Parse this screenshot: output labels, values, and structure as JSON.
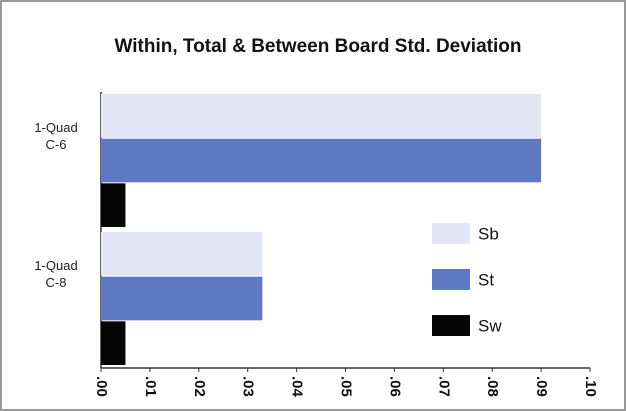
{
  "chart_data": {
    "type": "hbar",
    "title": "Within, Total & Between Board Std. Deviation",
    "categories": [
      "1-Quad C-6",
      "1-Quad C-8"
    ],
    "series": [
      {
        "name": "Sb",
        "color": "#e4e6f6",
        "values": [
          0.09,
          0.033
        ]
      },
      {
        "name": "St",
        "color": "#5f79c3",
        "values": [
          0.09,
          0.033
        ]
      },
      {
        "name": "Sw",
        "color": "#050505",
        "values": [
          0.005,
          0.005
        ]
      }
    ],
    "xlim": [
      0,
      0.1
    ],
    "xticks": [
      {
        "value": 0,
        "label": ".00"
      },
      {
        "value": 0.01,
        "label": ".01"
      },
      {
        "value": 0.02,
        "label": ".02"
      },
      {
        "value": 0.03,
        "label": ".03"
      },
      {
        "value": 0.04,
        "label": ".04"
      },
      {
        "value": 0.05,
        "label": ".05"
      },
      {
        "value": 0.06,
        "label": ".06"
      },
      {
        "value": 0.07,
        "label": ".07"
      },
      {
        "value": 0.08,
        "label": ".08"
      },
      {
        "value": 0.09,
        "label": ".09"
      },
      {
        "value": 0.1,
        "label": ".10"
      }
    ],
    "legend": "right"
  }
}
